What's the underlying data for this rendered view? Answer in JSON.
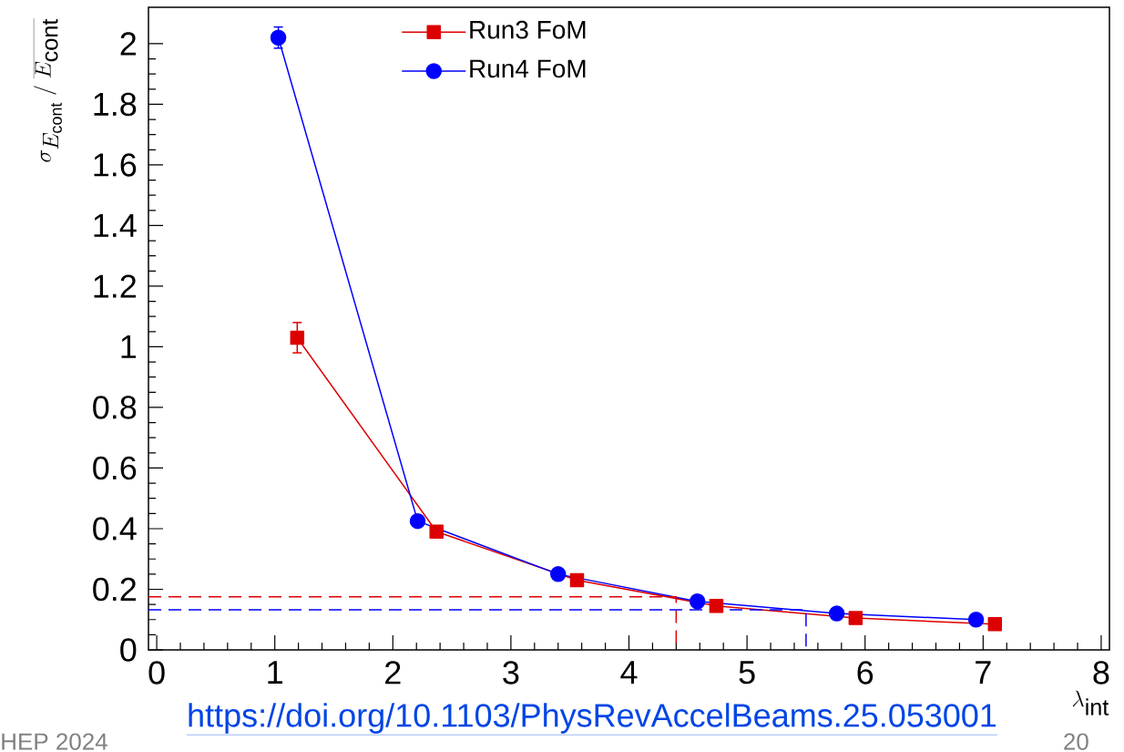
{
  "chart_data": {
    "type": "line",
    "xlabel": "\\lambda_{\\mathrm{int}}",
    "ylabel": "\\sigma_{E_{\\mathrm{cont}}} \\;/\\; \\overline{E_{\\mathrm{cont}}}",
    "series": [
      {
        "name": "Run3 FoM",
        "color": "#dd0000",
        "marker": "square",
        "x": [
          1.19,
          2.37,
          3.56,
          4.74,
          5.92,
          7.1
        ],
        "values": [
          1.03,
          0.39,
          0.23,
          0.145,
          0.105,
          0.085
        ],
        "errors": [
          0.05,
          null,
          null,
          null,
          null,
          null
        ]
      },
      {
        "name": "Run4 FoM",
        "color": "#0000ff",
        "marker": "circle",
        "x": [
          1.03,
          2.21,
          3.4,
          4.58,
          5.76,
          6.94
        ],
        "values": [
          2.02,
          0.425,
          0.25,
          0.16,
          0.12,
          0.1
        ],
        "errors": [
          0.035,
          null,
          null,
          null,
          null,
          null
        ]
      },
      {
        "color": "#dd0000",
        "marker": "none",
        "line_style": "dashed",
        "x": [
          -0.07,
          4.4,
          4.4
        ],
        "values": [
          0.175,
          0.175,
          0
        ]
      },
      {
        "color": "#0000ff",
        "marker": "none",
        "line_style": "dashed",
        "x": [
          -0.07,
          5.5,
          5.5
        ],
        "values": [
          0.132,
          0.132,
          0
        ]
      }
    ],
    "xlim": [
      -0.07,
      8.07
    ],
    "ylim": [
      0,
      2.12
    ],
    "xticks": [
      0,
      1,
      2,
      3,
      4,
      5,
      6,
      7,
      8
    ],
    "yticks": [
      0,
      0.2,
      0.4,
      0.6,
      0.8,
      1,
      1.2,
      1.4,
      1.6,
      1.8,
      2
    ],
    "grid": false,
    "legend": "top",
    "annotations": [
      "https://doi.org/10.1103/PhysRevAccelBeams.25.053001",
      "HEP 2024",
      "20"
    ]
  }
}
